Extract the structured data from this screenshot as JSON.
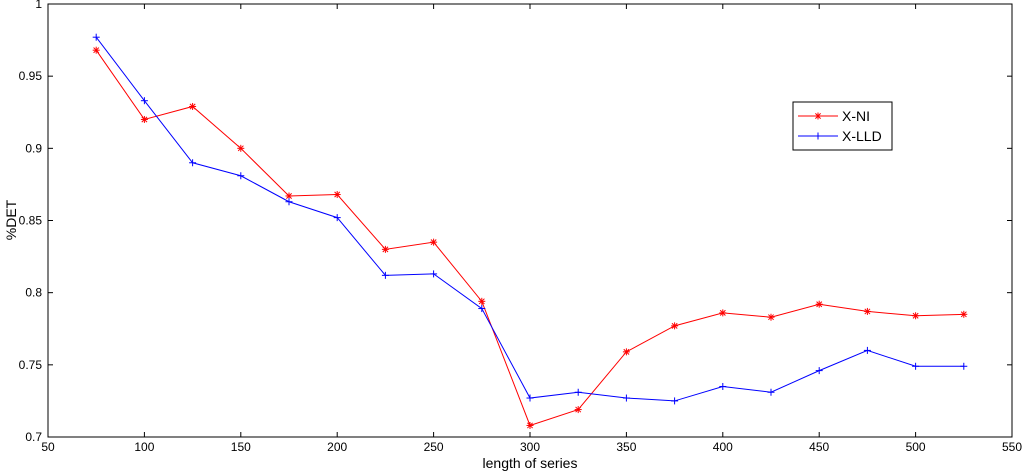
{
  "chart_data": {
    "type": "line",
    "title": "",
    "xlabel": "length of series",
    "ylabel": "%DET",
    "xlim": [
      50,
      550
    ],
    "ylim": [
      0.7,
      1.0
    ],
    "grid": false,
    "legend_position": "top-right",
    "xticks": [
      "50",
      "100",
      "150",
      "200",
      "250",
      "300",
      "350",
      "400",
      "450",
      "500",
      "550"
    ],
    "yticks": [
      "0.7",
      "0.75",
      "0.8",
      "0.85",
      "0.9",
      "0.95",
      "1"
    ],
    "x": [
      75,
      100,
      125,
      150,
      175,
      200,
      225,
      250,
      275,
      300,
      325,
      350,
      375,
      400,
      425,
      450,
      475,
      500,
      525
    ],
    "series": [
      {
        "name": "X-NI",
        "color": "#ff0000",
        "marker": "asterisk",
        "values": [
          0.968,
          0.92,
          0.929,
          0.9,
          0.867,
          0.868,
          0.83,
          0.835,
          0.794,
          0.708,
          0.719,
          0.759,
          0.777,
          0.786,
          0.783,
          0.792,
          0.787,
          0.784,
          0.785
        ]
      },
      {
        "name": "X-LLD",
        "color": "#0000ff",
        "marker": "plus",
        "values": [
          0.977,
          0.933,
          0.89,
          0.881,
          0.863,
          0.852,
          0.812,
          0.813,
          0.789,
          0.727,
          0.731,
          0.727,
          0.725,
          0.735,
          0.731,
          0.746,
          0.76,
          0.749,
          0.749
        ]
      }
    ]
  }
}
